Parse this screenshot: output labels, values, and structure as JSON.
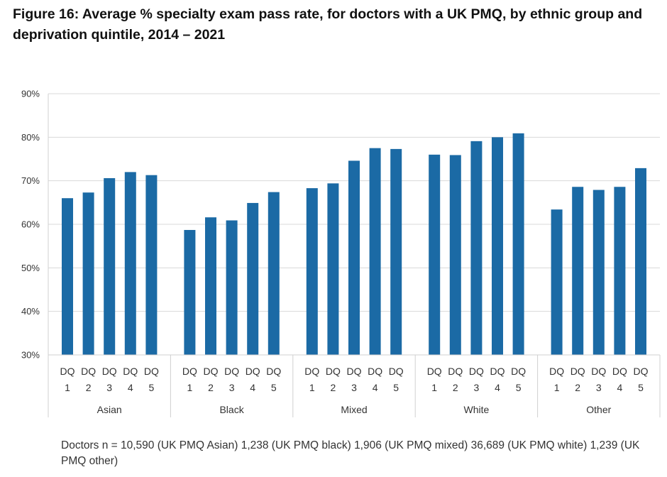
{
  "title": "Figure 16: Average % specialty exam pass rate, for doctors with a UK PMQ, by ethnic group and deprivation quintile, 2014 – 2021",
  "footnote": "Doctors n = 10,590  (UK PMQ Asian) 1,238  (UK PMQ black) 1,906  (UK PMQ mixed) 36,689  (UK PMQ white) 1,239  (UK PMQ other)",
  "chart_data": {
    "type": "bar",
    "title": "Figure 16: Average % specialty exam pass rate, for doctors with a UK PMQ, by ethnic group and deprivation quintile, 2014 – 2021",
    "xlabel": "",
    "ylabel": "",
    "ylim": [
      30,
      90
    ],
    "yticks": [
      30,
      40,
      50,
      60,
      70,
      80,
      90
    ],
    "ytick_format": "%",
    "grid": true,
    "bar_color": "#1b6aa5",
    "grid_color": "#d9d9d9",
    "categories": [
      "DQ 1",
      "DQ 2",
      "DQ 3",
      "DQ 4",
      "DQ 5"
    ],
    "category_lines": [
      [
        "DQ",
        "1"
      ],
      [
        "DQ",
        "2"
      ],
      [
        "DQ",
        "3"
      ],
      [
        "DQ",
        "4"
      ],
      [
        "DQ",
        "5"
      ]
    ],
    "groups": [
      {
        "name": "Asian",
        "values": [
          66.0,
          67.3,
          70.6,
          72.0,
          71.3
        ]
      },
      {
        "name": "Black",
        "values": [
          58.7,
          61.6,
          60.9,
          64.9,
          67.4
        ]
      },
      {
        "name": "Mixed",
        "values": [
          68.3,
          69.4,
          74.6,
          77.5,
          77.3
        ]
      },
      {
        "name": "White",
        "values": [
          76.0,
          75.9,
          79.1,
          80.0,
          80.9
        ]
      },
      {
        "name": "Other",
        "values": [
          63.4,
          68.6,
          67.9,
          68.6,
          72.9
        ]
      }
    ]
  }
}
